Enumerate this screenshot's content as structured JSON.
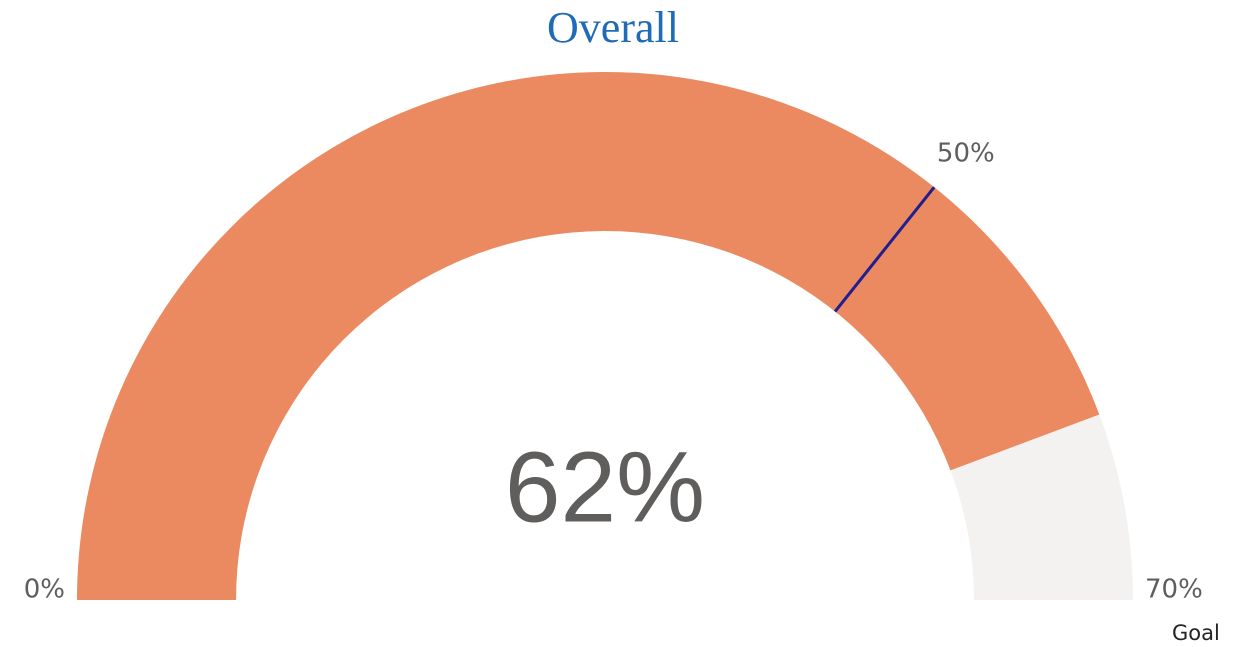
{
  "chart_data": {
    "type": "gauge",
    "title": "Overall",
    "values": [
      62
    ],
    "value_labels": [
      "62%"
    ],
    "ylim": [
      0,
      70
    ],
    "yticks": [
      {
        "value": 0,
        "label": "0%"
      },
      {
        "value": 70,
        "label": "70%"
      }
    ],
    "target": 50,
    "target_label": "50%",
    "annotation": "Goal",
    "color": "#eb8a60",
    "track_color": "#f3f2f1",
    "target_color": "#1f1f8f",
    "title_color": "#1f6bb5"
  }
}
